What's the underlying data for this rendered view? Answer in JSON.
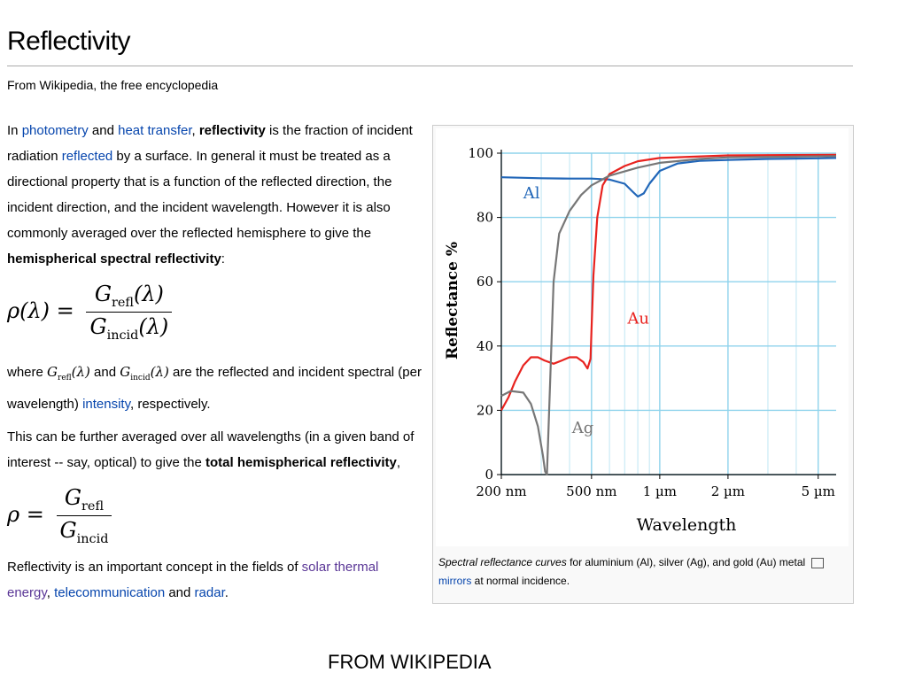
{
  "article": {
    "title": "Reflectivity",
    "tagline": "From Wikipedia, the free encyclopedia",
    "p1": {
      "t1": "In ",
      "l1": "photometry",
      "t2": " and ",
      "l2": "heat transfer",
      "t3": ", ",
      "b1": "reflectivity",
      "t4": " is the fraction of incident radiation ",
      "l3": "reflected",
      "t5": " by a surface. In general it must be treated as a directional property that is a function of the reflected direction, the incident direction, and the incident wavelength. However it is also commonly averaged over the reflected hemisphere to give the ",
      "b2": "hemispherical spectral reflectivity",
      "t6": ":"
    },
    "formula1": {
      "lhs": "ρ(λ) =",
      "num": "G",
      "num_sub": "refl",
      "num_arg": "(λ)",
      "den": "G",
      "den_sub": "incid",
      "den_arg": "(λ)"
    },
    "p2": {
      "t1": "where ",
      "g1": "G",
      "g1_sub": "refl",
      "g1_arg": "(λ)",
      "t2": " and ",
      "g2": "G",
      "g2_sub": "incid",
      "g2_arg": "(λ)",
      "t3": " are the reflected and incident spectral (per wavelength) ",
      "l1": "intensity",
      "t4": ", respectively."
    },
    "p3": {
      "t1": "This can be further averaged over all wavelengths (in a given band of interest -- say, optical) to give the ",
      "b1": "total hemispherical reflectivity",
      "t2": ","
    },
    "formula2": {
      "lhs": "ρ =",
      "num": "G",
      "num_sub": "refl",
      "den": "G",
      "den_sub": "incid"
    },
    "p4": {
      "t1": "Reflectivity is an important concept in the fields of ",
      "l1": "solar thermal energy",
      "t2": ", ",
      "l2": "telecommunication",
      "t3": " and ",
      "l3": "radar",
      "t4": "."
    }
  },
  "figure": {
    "caption": {
      "italic": "Spectral reflectance curves",
      "t1": " for aluminium (Al), silver (Ag), and gold (Au) metal ",
      "link": "mirrors",
      "t2": " at normal incidence."
    },
    "magnify_icon": "magnify-clip-icon"
  },
  "footer": "FROM WIKIPEDIA",
  "chart_data": {
    "type": "line",
    "xlabel": "Wavelength",
    "ylabel": "Reflectance %",
    "xscale": "log",
    "xlim": [
      200,
      6000
    ],
    "ylim": [
      0,
      100
    ],
    "grid": true,
    "x_ticks": [
      200,
      500,
      1000,
      2000,
      5000
    ],
    "x_tick_labels": [
      "200 nm",
      "500 nm",
      "1 µm",
      "2 µm",
      "5 µm"
    ],
    "y_ticks": [
      0,
      20,
      40,
      60,
      80,
      100
    ],
    "y_tick_labels": [
      "0",
      "20",
      "40",
      "60",
      "80",
      "100"
    ],
    "series": [
      {
        "name": "Al",
        "color": "#2166b8",
        "label_at": [
          250,
          86
        ],
        "points": [
          [
            200,
            92.5
          ],
          [
            300,
            92.2
          ],
          [
            400,
            92.1
          ],
          [
            500,
            92.1
          ],
          [
            600,
            91.8
          ],
          [
            700,
            90.5
          ],
          [
            760,
            88
          ],
          [
            800,
            86.5
          ],
          [
            850,
            87.5
          ],
          [
            900,
            90.5
          ],
          [
            1000,
            94.5
          ],
          [
            1200,
            96.8
          ],
          [
            1500,
            97.6
          ],
          [
            2000,
            97.9
          ],
          [
            3000,
            98.2
          ],
          [
            5000,
            98.4
          ],
          [
            6000,
            98.5
          ]
        ]
      },
      {
        "name": "Au",
        "color": "#e8231f",
        "label_at": [
          720,
          47
        ],
        "points": [
          [
            200,
            20
          ],
          [
            215,
            24
          ],
          [
            230,
            29
          ],
          [
            250,
            34
          ],
          [
            270,
            36.5
          ],
          [
            290,
            36.5
          ],
          [
            310,
            35.5
          ],
          [
            340,
            34.5
          ],
          [
            370,
            35.5
          ],
          [
            400,
            36.5
          ],
          [
            430,
            36.5
          ],
          [
            460,
            35
          ],
          [
            480,
            33
          ],
          [
            495,
            36
          ],
          [
            500,
            45
          ],
          [
            510,
            62
          ],
          [
            530,
            80
          ],
          [
            560,
            90
          ],
          [
            600,
            93.5
          ],
          [
            700,
            96
          ],
          [
            800,
            97.5
          ],
          [
            1000,
            98.5
          ],
          [
            2000,
            99.3
          ],
          [
            6000,
            99.5
          ]
        ]
      },
      {
        "name": "Ag",
        "color": "#777777",
        "label_at": [
          410,
          13
        ],
        "points": [
          [
            200,
            24.5
          ],
          [
            220,
            26
          ],
          [
            250,
            25.5
          ],
          [
            270,
            22
          ],
          [
            290,
            15
          ],
          [
            305,
            6
          ],
          [
            312,
            1
          ],
          [
            318,
            0
          ],
          [
            325,
            20
          ],
          [
            340,
            60
          ],
          [
            360,
            75
          ],
          [
            400,
            82
          ],
          [
            450,
            87
          ],
          [
            500,
            90
          ],
          [
            600,
            93
          ],
          [
            800,
            95.5
          ],
          [
            1000,
            97
          ],
          [
            1500,
            98.2
          ],
          [
            2000,
            98.7
          ],
          [
            6000,
            99.1
          ]
        ]
      }
    ]
  }
}
